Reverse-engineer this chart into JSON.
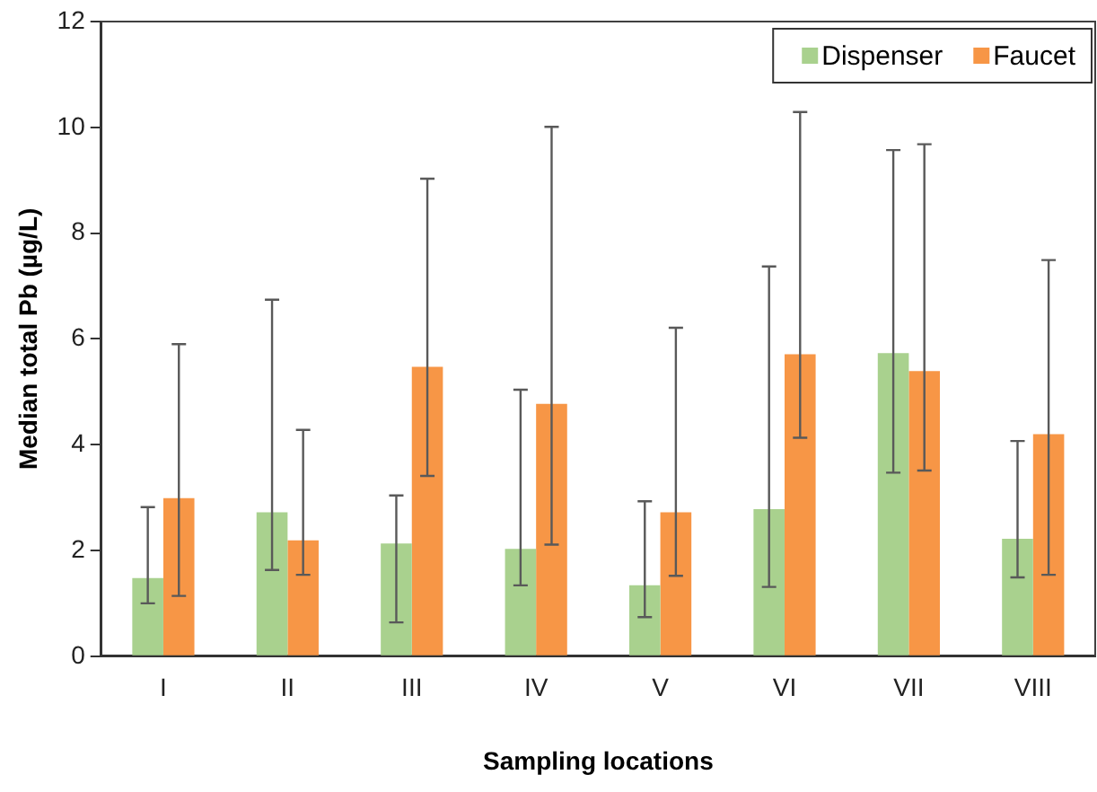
{
  "chart_data": {
    "type": "bar",
    "xlabel": "Sampling locations",
    "ylabel": "Median total Pb (µg/L)",
    "categories": [
      "I",
      "II",
      "III",
      "IV",
      "V",
      "VI",
      "VII",
      "VIII"
    ],
    "series": [
      {
        "name": "Dispenser",
        "color": "#a9d18e",
        "values": [
          1.48,
          2.72,
          2.13,
          2.03,
          1.34,
          2.78,
          5.73,
          2.22
        ],
        "errors": [
          [
            1.0,
            2.82
          ],
          [
            1.63,
            6.74
          ],
          [
            0.64,
            3.04
          ],
          [
            1.34,
            5.04
          ],
          [
            0.74,
            2.93
          ],
          [
            1.31,
            7.37
          ],
          [
            3.47,
            9.57
          ],
          [
            1.49,
            4.07
          ]
        ]
      },
      {
        "name": "Faucet",
        "color": "#f79646",
        "values": [
          2.99,
          2.19,
          5.47,
          4.77,
          2.72,
          5.71,
          5.39,
          4.2
        ],
        "errors": [
          [
            1.14,
            5.9
          ],
          [
            1.54,
            4.28
          ],
          [
            3.41,
            9.03
          ],
          [
            2.11,
            10.01
          ],
          [
            1.52,
            6.21
          ],
          [
            4.13,
            10.29
          ],
          [
            3.51,
            9.68
          ],
          [
            1.54,
            7.49
          ]
        ]
      }
    ],
    "ylim": [
      0,
      12
    ],
    "yticks": [
      0,
      2,
      4,
      6,
      8,
      10,
      12
    ],
    "grid": false,
    "legend": "top right"
  }
}
